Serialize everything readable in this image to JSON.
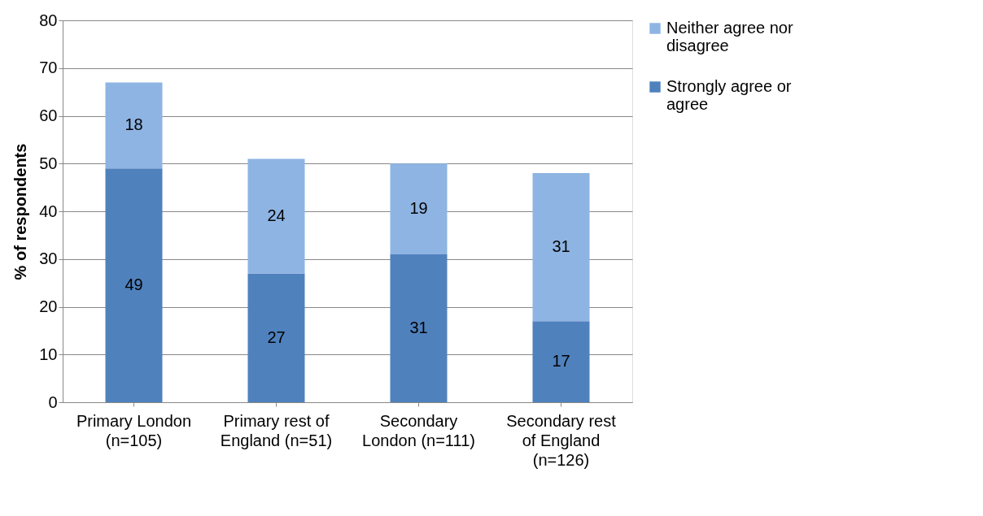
{
  "chart_data": {
    "type": "bar",
    "stacked": true,
    "ylabel": "% of respondents",
    "categories": [
      "Primary London (n=105)",
      "Primary rest of England (n=51)",
      "Secondary London (n=111)",
      "Secondary rest of England (n=126)"
    ],
    "series": [
      {
        "name": "Strongly agree or agree",
        "color": "#4f81bd",
        "values": [
          49,
          27,
          31,
          17
        ]
      },
      {
        "name": "Neither agree nor disagree",
        "color": "#8eb4e3",
        "values": [
          18,
          24,
          19,
          31
        ]
      }
    ],
    "ylim": [
      0,
      80
    ],
    "yticks": [
      0,
      10,
      20,
      30,
      40,
      50,
      60,
      70,
      80
    ],
    "grid": "y",
    "legend": "right",
    "data_labels": true
  }
}
